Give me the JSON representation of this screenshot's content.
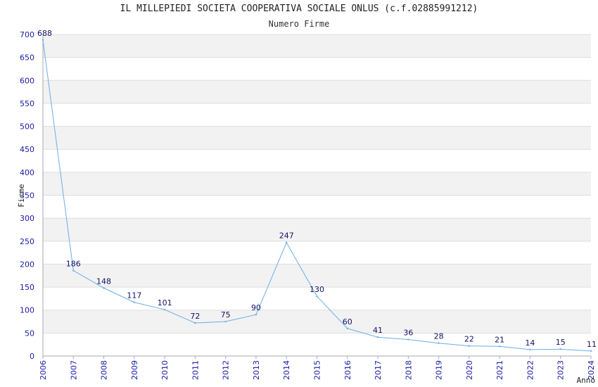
{
  "chart_data": {
    "type": "line",
    "title": "IL MILLEPIEDI SOCIETA COOPERATIVA SOCIALE ONLUS (c.f.02885991212)",
    "subtitle": "Numero Firme",
    "xlabel": "Anno",
    "ylabel": "Firme",
    "categories": [
      "2006",
      "2007",
      "2008",
      "2009",
      "2010",
      "2011",
      "2012",
      "2013",
      "2014",
      "2015",
      "2016",
      "2017",
      "2018",
      "2019",
      "2020",
      "2021",
      "2022",
      "2023",
      "2024"
    ],
    "series": [
      {
        "values": [
          688,
          186,
          148,
          117,
          101,
          72,
          75,
          90,
          247,
          130,
          60,
          41,
          36,
          28,
          22,
          21,
          14,
          15,
          11
        ]
      }
    ],
    "ylim": [
      0,
      700
    ],
    "ystep": 50,
    "grid": true,
    "legend": "none",
    "colors": {
      "line": "#6aaee8",
      "band_light": "#f2f2f2",
      "band_white": "#ffffff",
      "grid": "#dddddd",
      "ticks": "#1a1aa6",
      "axis": "#aaaaaa"
    }
  }
}
